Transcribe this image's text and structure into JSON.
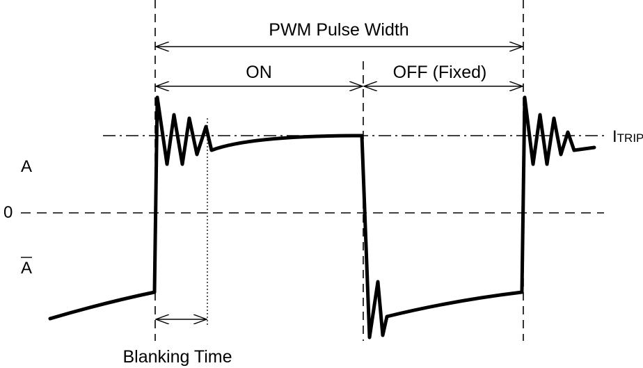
{
  "labels": {
    "pwm_pulse_width": "PWM Pulse Width",
    "on": "ON",
    "off": "OFF (Fixed)",
    "itrip_main": "I",
    "itrip_sub": "TRIP",
    "a": "A",
    "zero": "0",
    "a_bar": "A",
    "blanking_time": "Blanking Time"
  },
  "colors": {
    "line": "#000000",
    "background": "#ffffff"
  }
}
